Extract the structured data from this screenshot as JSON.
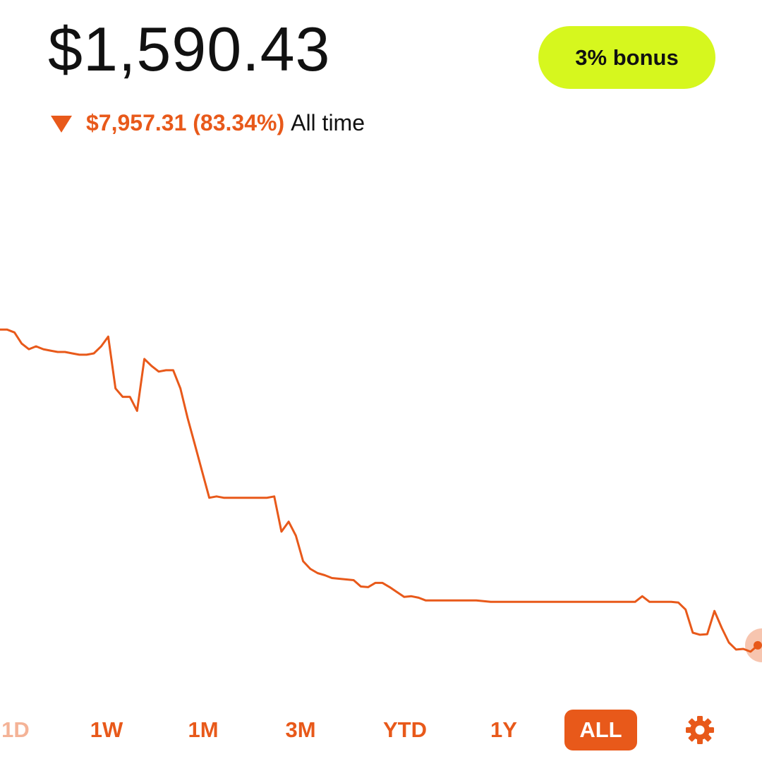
{
  "header": {
    "balance": "$1,590.43",
    "bonus_label": "3% bonus"
  },
  "change": {
    "amount_text": "$7,957.31 (83.34%)",
    "period_label": "All time",
    "direction": "down"
  },
  "colors": {
    "accent": "#E8591A",
    "bonus_bg": "#D6F71E",
    "text": "#111111",
    "background": "#FFFFFF"
  },
  "range_tabs": [
    "1D",
    "1W",
    "1M",
    "3M",
    "YTD",
    "1Y",
    "ALL"
  ],
  "selected_range": "ALL",
  "settings_icon": "gear-icon",
  "chart_data": {
    "type": "line",
    "title": "",
    "xlabel": "",
    "ylabel": "",
    "grid": false,
    "series": [
      {
        "values": [
          9548,
          9548,
          9521,
          9412,
          9357,
          9385,
          9357,
          9343,
          9330,
          9330,
          9316,
          9303,
          9303,
          9316,
          9384,
          9480,
          8974,
          8892,
          8892,
          8755,
          9262,
          9194,
          9139,
          9152,
          9152,
          8974,
          8686,
          8426,
          8166,
          7907,
          7920,
          7907,
          7907,
          7907,
          7907,
          7907,
          7907,
          7907,
          7920,
          7577,
          7674,
          7536,
          7288,
          7213,
          7172,
          7151,
          7124,
          7117,
          7110,
          7103,
          7041,
          7035,
          7076,
          7076,
          7035,
          6987,
          6939,
          6946,
          6932,
          6905,
          6905,
          6905,
          6905,
          6905,
          6905,
          6905,
          6905,
          6898,
          6891,
          6891,
          6891,
          6891,
          6891,
          6891,
          6891,
          6891,
          6891,
          6891,
          6891,
          6891,
          6891,
          6891,
          6891,
          6891,
          6891,
          6891,
          6891,
          6891,
          6891,
          6946,
          6891,
          6891,
          6891,
          6891,
          6884,
          6816,
          6590,
          6570,
          6576,
          6802,
          6638,
          6494,
          6426,
          6432,
          6405,
          6467
        ]
      }
    ],
    "ylim": [
      5950,
      10700
    ]
  }
}
